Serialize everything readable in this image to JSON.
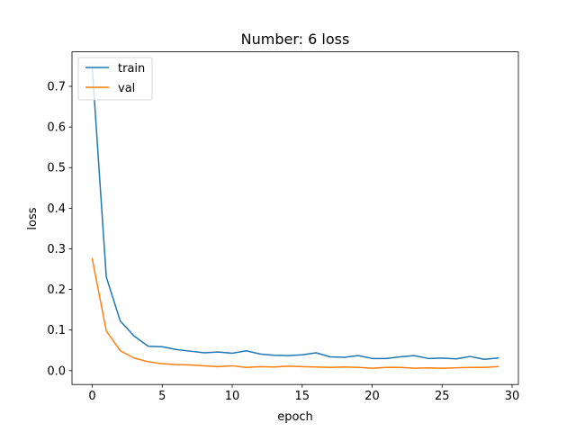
{
  "chart_data": {
    "type": "line",
    "title": "Number: 6 loss",
    "xlabel": "epoch",
    "ylabel": "loss",
    "xlim": [
      -1.45,
      30.45
    ],
    "ylim": [
      -0.034,
      0.785
    ],
    "xticks": [
      0,
      5,
      10,
      15,
      20,
      25,
      30
    ],
    "yticks": [
      0.0,
      0.1,
      0.2,
      0.3,
      0.4,
      0.5,
      0.6,
      0.7
    ],
    "ytick_labels": [
      "0.0",
      "0.1",
      "0.2",
      "0.3",
      "0.4",
      "0.5",
      "0.6",
      "0.7"
    ],
    "grid": false,
    "legend_position": "upper-left",
    "x": [
      0,
      1,
      2,
      3,
      4,
      5,
      6,
      7,
      8,
      9,
      10,
      11,
      12,
      13,
      14,
      15,
      16,
      17,
      18,
      19,
      20,
      21,
      22,
      23,
      24,
      25,
      26,
      27,
      28,
      29
    ],
    "series": [
      {
        "name": "train",
        "color": "#1f77b4",
        "values": [
          0.745,
          0.231,
          0.122,
          0.085,
          0.06,
          0.059,
          0.052,
          0.048,
          0.044,
          0.046,
          0.043,
          0.049,
          0.041,
          0.038,
          0.037,
          0.039,
          0.044,
          0.034,
          0.033,
          0.037,
          0.03,
          0.03,
          0.034,
          0.037,
          0.03,
          0.031,
          0.029,
          0.035,
          0.028,
          0.031
        ]
      },
      {
        "name": "val",
        "color": "#ff7f0e",
        "values": [
          0.275,
          0.098,
          0.049,
          0.031,
          0.022,
          0.017,
          0.015,
          0.014,
          0.012,
          0.01,
          0.012,
          0.008,
          0.01,
          0.009,
          0.011,
          0.01,
          0.009,
          0.008,
          0.009,
          0.008,
          0.006,
          0.008,
          0.008,
          0.006,
          0.007,
          0.006,
          0.007,
          0.008,
          0.008,
          0.01
        ]
      }
    ]
  }
}
